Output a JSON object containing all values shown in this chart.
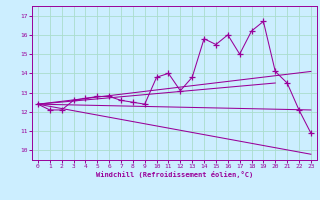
{
  "xlabel": "Windchill (Refroidissement éolien,°C)",
  "bg_color": "#cceeff",
  "line_color": "#990099",
  "grid_color": "#aaddcc",
  "xlim": [
    -0.5,
    23.5
  ],
  "ylim": [
    9.5,
    17.5
  ],
  "xticks": [
    0,
    1,
    2,
    3,
    4,
    5,
    6,
    7,
    8,
    9,
    10,
    11,
    12,
    13,
    14,
    15,
    16,
    17,
    18,
    19,
    20,
    21,
    22,
    23
  ],
  "yticks": [
    10,
    11,
    12,
    13,
    14,
    15,
    16,
    17
  ],
  "main_x": [
    0,
    1,
    2,
    3,
    4,
    5,
    6,
    7,
    8,
    9,
    10,
    11,
    12,
    13,
    14,
    15,
    16,
    17,
    18,
    19,
    20,
    21,
    22,
    23
  ],
  "main_y": [
    12.4,
    12.1,
    12.1,
    12.6,
    12.7,
    12.8,
    12.8,
    12.6,
    12.5,
    12.4,
    13.8,
    14.0,
    13.1,
    13.8,
    15.8,
    15.5,
    16.0,
    15.0,
    16.2,
    16.7,
    14.1,
    13.5,
    12.1,
    10.9
  ],
  "lines": [
    {
      "x": [
        0,
        23
      ],
      "y": [
        12.4,
        14.1
      ]
    },
    {
      "x": [
        0,
        20
      ],
      "y": [
        12.4,
        13.5
      ]
    },
    {
      "x": [
        0,
        23
      ],
      "y": [
        12.4,
        12.1
      ]
    },
    {
      "x": [
        0,
        23
      ],
      "y": [
        12.4,
        9.8
      ]
    }
  ]
}
